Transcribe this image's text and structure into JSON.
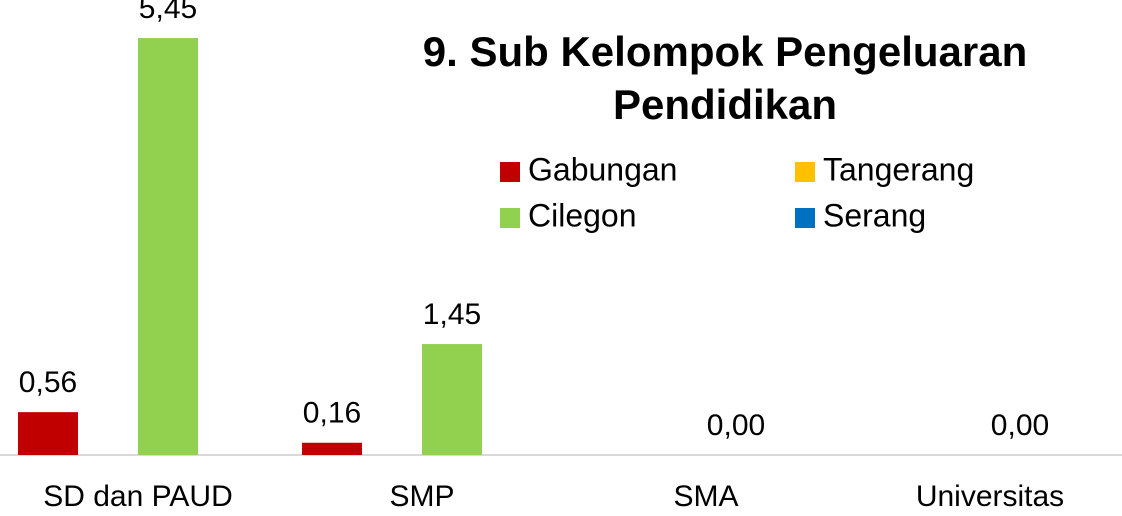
{
  "chart_data": {
    "type": "bar",
    "title": [
      "9. Sub Kelompok Pengeluaran",
      "Pendidikan"
    ],
    "categories": [
      "SD dan PAUD",
      "SMP",
      "SMA",
      "Universitas"
    ],
    "series": [
      {
        "name": "Gabungan",
        "color": "#c00000",
        "values": [
          0.56,
          0.16,
          null,
          null
        ],
        "value_labels": [
          "0,56",
          "0,16",
          null,
          null
        ]
      },
      {
        "name": "Tangerang",
        "color": "#ffc000",
        "values": [
          null,
          null,
          null,
          null
        ]
      },
      {
        "name": "Cilegon",
        "color": "#92d050",
        "values": [
          5.45,
          1.45,
          0,
          0
        ],
        "value_labels": [
          "5,45",
          "1,45",
          "0,00",
          "0,00"
        ]
      },
      {
        "name": "Serang",
        "color": "#0070c0",
        "values": [
          null,
          null,
          null,
          null
        ]
      }
    ],
    "ylim": [
      0,
      6
    ]
  }
}
